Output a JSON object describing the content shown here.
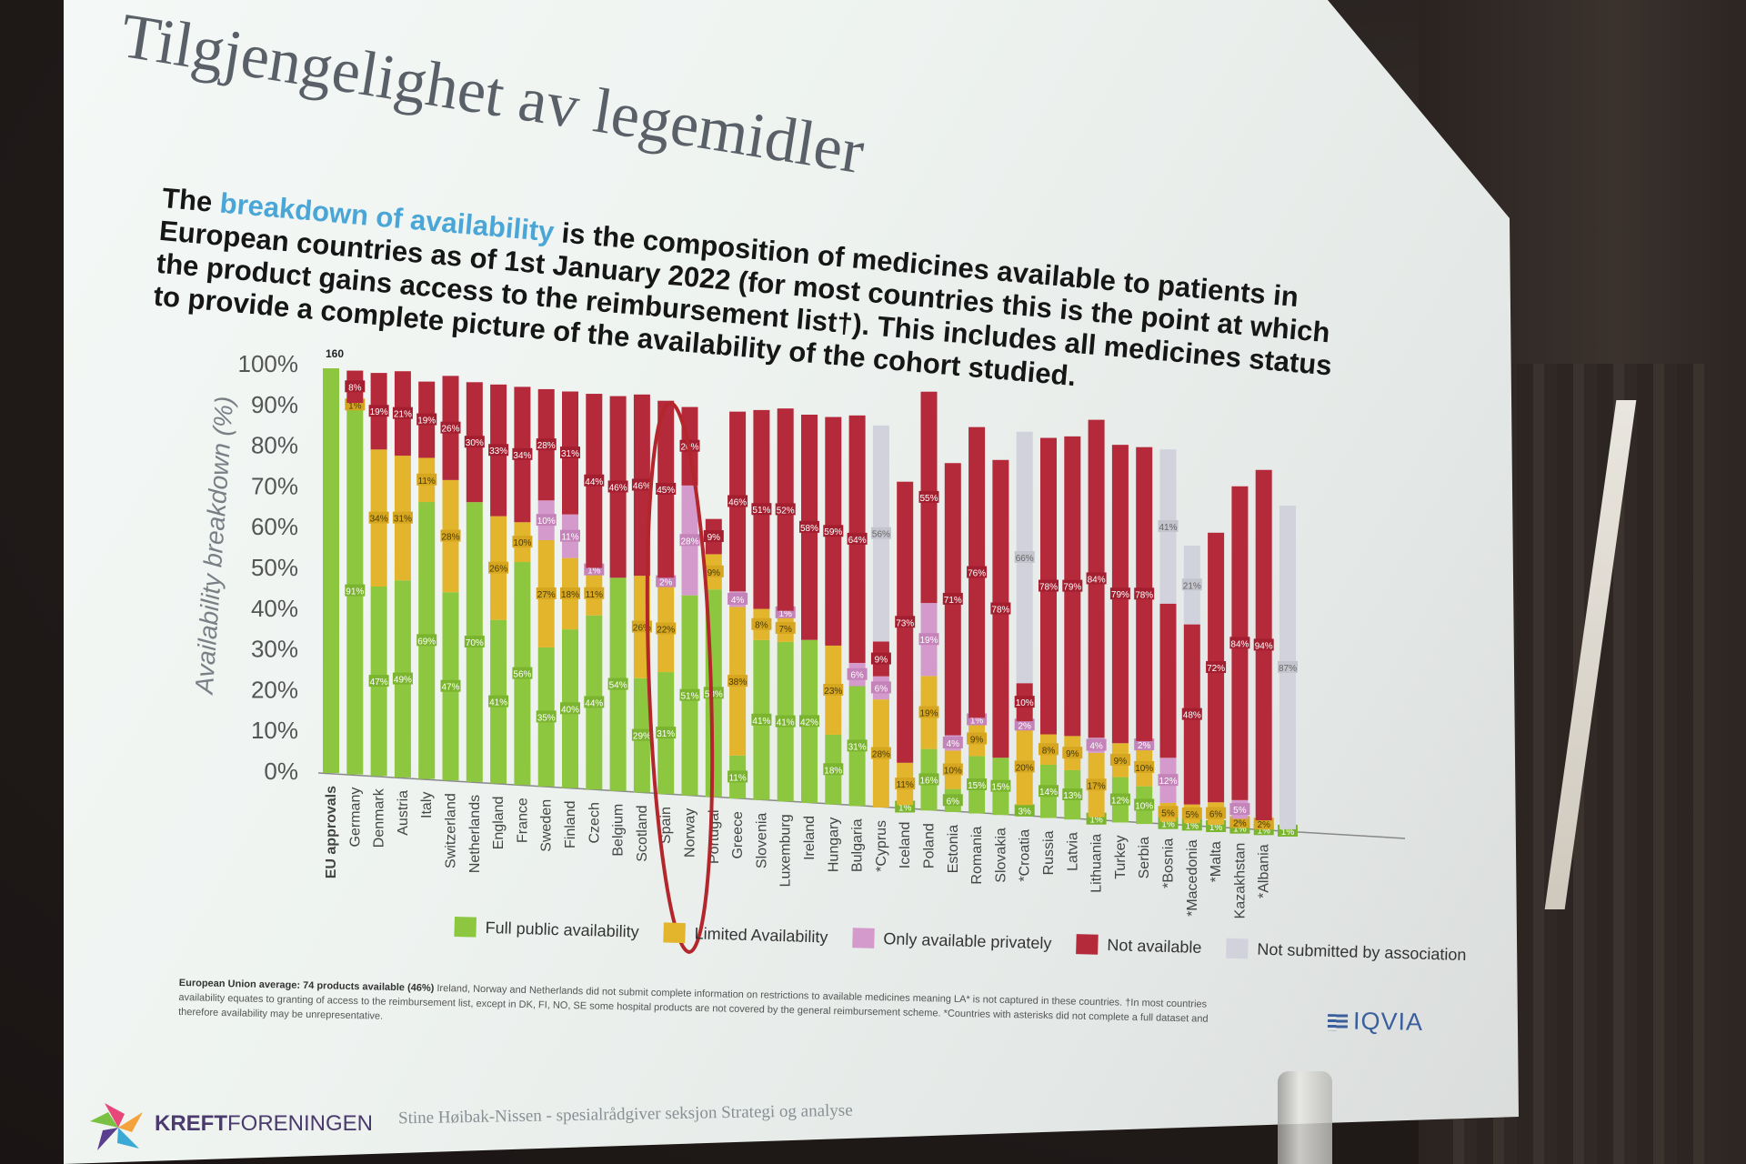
{
  "slide": {
    "title": "Tilgjengelighet av legemidler",
    "subtitle_pre": "The ",
    "subtitle_highlight": "breakdown of availability",
    "subtitle_post": " is the composition of medicines available to patients in European countries as of 1st January 2022 (for most countries this is the point at which the product gains access to the reimbursement list†). This includes all medicines status to provide a complete picture of the availability of the cohort studied.",
    "footnote_bold": "European Union average: 74 products available (46%)",
    "footnote_text": "Ireland, Norway and Netherlands did not submit complete information on restrictions to available medicines meaning LA* is not captured in these countries. †In most countries availability equates to granting of access to the reimbursement list, except in DK, FI, NO, SE some hospital products are not covered by the general reimbursement scheme. *Countries with asterisks did not complete a full dataset and therefore availability may be unrepresentative.",
    "source_logo": "IQVIA",
    "org_logo_bold": "KREFT",
    "org_logo_rest": "FORENINGEN",
    "presenter": "Stine Høibak-Nissen - spesialrådgiver seksjon Strategi og analyse",
    "highlight_country": "Norway"
  },
  "colors": {
    "full": "#8dc63f",
    "limited": "#e3b52d",
    "private": "#d49acb",
    "not_available": "#b52a3a",
    "not_submitted": "#d2d2dc",
    "highlight_ellipse": "#b3262c"
  },
  "chart_data": {
    "type": "bar",
    "stacked": true,
    "ylabel": "Availability breakdown (%)",
    "yticks": [
      "0%",
      "10%",
      "20%",
      "30%",
      "40%",
      "50%",
      "60%",
      "70%",
      "80%",
      "90%",
      "100%"
    ],
    "ylim": [
      0,
      100
    ],
    "eu_total_label": "160",
    "legend": [
      "Full public availability",
      "Limited Availability",
      "Only available privately",
      "Not available",
      "Not submitted by association"
    ],
    "bars": [
      {
        "country": "EU approvals",
        "full": 100,
        "limited": 0,
        "private": 0,
        "na": 0,
        "ns": 0,
        "labels": []
      },
      {
        "country": "Germany",
        "full": 91,
        "limited": 1,
        "private": 0,
        "na": 8,
        "ns": 0,
        "labels": [
          "91%",
          "1%",
          "",
          "8%",
          ""
        ]
      },
      {
        "country": "Denmark",
        "full": 47,
        "limited": 34,
        "private": 0,
        "na": 19,
        "ns": 0,
        "labels": [
          "47%",
          "34%",
          "",
          "19%",
          ""
        ]
      },
      {
        "country": "Austria",
        "full": 49,
        "limited": 31,
        "private": 0,
        "na": 21,
        "ns": 0,
        "labels": [
          "49%",
          "31%",
          "",
          "21%",
          ""
        ]
      },
      {
        "country": "Italy",
        "full": 69,
        "limited": 11,
        "private": 0,
        "na": 19,
        "ns": 0,
        "labels": [
          "69%",
          "11%",
          "",
          "19%",
          ""
        ]
      },
      {
        "country": "Switzerland",
        "full": 47,
        "limited": 28,
        "private": 0,
        "na": 26,
        "ns": 0,
        "labels": [
          "47%",
          "28%",
          "",
          "26%",
          ""
        ]
      },
      {
        "country": "Netherlands",
        "full": 70,
        "limited": 0,
        "private": 0,
        "na": 30,
        "ns": 0,
        "labels": [
          "70%",
          "",
          "",
          "30%",
          ""
        ]
      },
      {
        "country": "England",
        "full": 41,
        "limited": 26,
        "private": 0,
        "na": 33,
        "ns": 0,
        "labels": [
          "41%",
          "26%",
          "",
          "33%",
          ""
        ]
      },
      {
        "country": "France",
        "full": 56,
        "limited": 10,
        "private": 0,
        "na": 34,
        "ns": 0,
        "labels": [
          "56%",
          "10%",
          "",
          "34%",
          ""
        ]
      },
      {
        "country": "Sweden",
        "full": 35,
        "limited": 27,
        "private": 10,
        "na": 28,
        "ns": 0,
        "labels": [
          "35%",
          "27%",
          "10%",
          "28%",
          ""
        ]
      },
      {
        "country": "Finland",
        "full": 40,
        "limited": 18,
        "private": 11,
        "na": 31,
        "ns": 0,
        "labels": [
          "40%",
          "18%",
          "11%",
          "31%",
          ""
        ]
      },
      {
        "country": "Czech",
        "full": 44,
        "limited": 11,
        "private": 1,
        "na": 44,
        "ns": 0,
        "labels": [
          "44%",
          "11%",
          "1%",
          "44%",
          ""
        ]
      },
      {
        "country": "Belgium",
        "full": 54,
        "limited": 0,
        "private": 0,
        "na": 46,
        "ns": 0,
        "labels": [
          "54%",
          "",
          "",
          "46%",
          ""
        ]
      },
      {
        "country": "Scotland",
        "full": 29,
        "limited": 26,
        "private": 0,
        "na": 46,
        "ns": 0,
        "labels": [
          "29%",
          "26%",
          "",
          "46%",
          ""
        ]
      },
      {
        "country": "Spain",
        "full": 31,
        "limited": 22,
        "private": 2,
        "na": 45,
        "ns": 0,
        "labels": [
          "31%",
          "22%",
          "2%",
          "45%",
          ""
        ]
      },
      {
        "country": "Norway",
        "full": 51,
        "limited": 0,
        "private": 28,
        "na": 20,
        "ns": 0,
        "labels": [
          "51%",
          "",
          "28%",
          "20%",
          ""
        ]
      },
      {
        "country": "Portugal",
        "full": 53,
        "limited": 9,
        "private": 0,
        "na": 9,
        "ns": 0,
        "labels": [
          "53%",
          "9%",
          "",
          "9%",
          ""
        ]
      },
      {
        "country": "Greece",
        "full": 11,
        "limited": 38,
        "private": 4,
        "na": 46,
        "ns": 0,
        "labels": [
          "11%",
          "38%",
          "4%",
          "46%",
          ""
        ]
      },
      {
        "country": "Slovenia",
        "full": 41,
        "limited": 8,
        "private": 0,
        "na": 51,
        "ns": 0,
        "labels": [
          "41%",
          "8%",
          "0%",
          "51%",
          ""
        ]
      },
      {
        "country": "Luxemburg",
        "full": 41,
        "limited": 7,
        "private": 1,
        "na": 52,
        "ns": 0,
        "labels": [
          "41%",
          "7%",
          "1%",
          "52%",
          ""
        ]
      },
      {
        "country": "Ireland",
        "full": 42,
        "limited": 0,
        "private": 0,
        "na": 58,
        "ns": 0,
        "labels": [
          "42%",
          "0%",
          "",
          "58%",
          ""
        ]
      },
      {
        "country": "Hungary",
        "full": 18,
        "limited": 23,
        "private": 0,
        "na": 59,
        "ns": 0,
        "labels": [
          "18%",
          "23%",
          "",
          "59%",
          ""
        ]
      },
      {
        "country": "Bulgaria",
        "full": 31,
        "limited": 0,
        "private": 6,
        "na": 64,
        "ns": 0,
        "labels": [
          "31%",
          "0%",
          "6%",
          "64%",
          ""
        ]
      },
      {
        "country": "*Cyprus",
        "full": 0,
        "limited": 28,
        "private": 6,
        "na": 9,
        "ns": 56,
        "labels": [
          "",
          "28%",
          "6%",
          "9%",
          "56%"
        ]
      },
      {
        "country": "Iceland",
        "full": 1,
        "limited": 11,
        "private": 0,
        "na": 73,
        "ns": 0,
        "labels": [
          "1%",
          "11%",
          "",
          "73%",
          ""
        ]
      },
      {
        "country": "Poland",
        "full": 16,
        "limited": 19,
        "private": 19,
        "na": 55,
        "ns": 0,
        "labels": [
          "16%",
          "19%",
          "19%",
          "55%",
          ""
        ]
      },
      {
        "country": "Estonia",
        "full": 6,
        "limited": 10,
        "private": 4,
        "na": 71,
        "ns": 0,
        "labels": [
          "6%",
          "10%",
          "4%",
          "71%",
          ""
        ]
      },
      {
        "country": "Romania",
        "full": 15,
        "limited": 9,
        "private": 1,
        "na": 76,
        "ns": 0,
        "labels": [
          "15%",
          "9%",
          "1%",
          "76%",
          ""
        ]
      },
      {
        "country": "Slovakia",
        "full": 15,
        "limited": 0,
        "private": 0,
        "na": 78,
        "ns": 0,
        "labels": [
          "15%",
          "",
          "",
          "78%",
          ""
        ]
      },
      {
        "country": "*Croatia",
        "full": 3,
        "limited": 20,
        "private": 2,
        "na": 10,
        "ns": 66,
        "labels": [
          "3%",
          "20%",
          "2%",
          "10%",
          "66%"
        ]
      },
      {
        "country": "Russia",
        "full": 14,
        "limited": 8,
        "private": 0,
        "na": 78,
        "ns": 0,
        "labels": [
          "14%",
          "8%",
          "",
          "78%",
          ""
        ]
      },
      {
        "country": "Latvia",
        "full": 13,
        "limited": 9,
        "private": 0,
        "na": 79,
        "ns": 0,
        "labels": [
          "13%",
          "9%",
          "",
          "79%",
          ""
        ]
      },
      {
        "country": "Lithuania",
        "full": 1,
        "limited": 17,
        "private": 4,
        "na": 84,
        "ns": 0,
        "labels": [
          "1%",
          "17%",
          "4%",
          "84%",
          ""
        ]
      },
      {
        "country": "Turkey",
        "full": 12,
        "limited": 9,
        "private": 0,
        "na": 79,
        "ns": 0,
        "labels": [
          "12%",
          "9%",
          "",
          "79%",
          ""
        ]
      },
      {
        "country": "Serbia",
        "full": 10,
        "limited": 10,
        "private": 2,
        "na": 78,
        "ns": 0,
        "labels": [
          "10%",
          "10%",
          "2%",
          "78%",
          ""
        ]
      },
      {
        "country": "*Bosnia",
        "full": 1,
        "limited": 5,
        "private": 12,
        "na": 41,
        "ns": 41,
        "labels": [
          "1%",
          "5%",
          "12%",
          "",
          "41%"
        ]
      },
      {
        "country": "*Macedonia",
        "full": 1,
        "limited": 5,
        "private": 0,
        "na": 48,
        "ns": 21,
        "labels": [
          "1%",
          "5%",
          "",
          "48%",
          "21%"
        ]
      },
      {
        "country": "*Malta",
        "full": 1,
        "limited": 6,
        "private": 0,
        "na": 72,
        "ns": 0,
        "labels": [
          "1%",
          "6%",
          "",
          "72%",
          ""
        ]
      },
      {
        "country": "Kazakhstan",
        "full": 1,
        "limited": 2,
        "private": 5,
        "na": 84,
        "ns": 0,
        "labels": [
          "1%",
          "2%",
          "5%",
          "84%",
          ""
        ]
      },
      {
        "country": "*Albania",
        "full": 1,
        "limited": 2,
        "private": 0,
        "na": 94,
        "ns": 0,
        "labels": [
          "1%",
          "2%",
          "",
          "94%",
          ""
        ]
      },
      {
        "country": "",
        "full": 1,
        "limited": 0,
        "private": 0,
        "na": 0,
        "ns": 87,
        "labels": [
          "1%",
          "",
          "",
          "",
          "87%"
        ]
      }
    ]
  }
}
